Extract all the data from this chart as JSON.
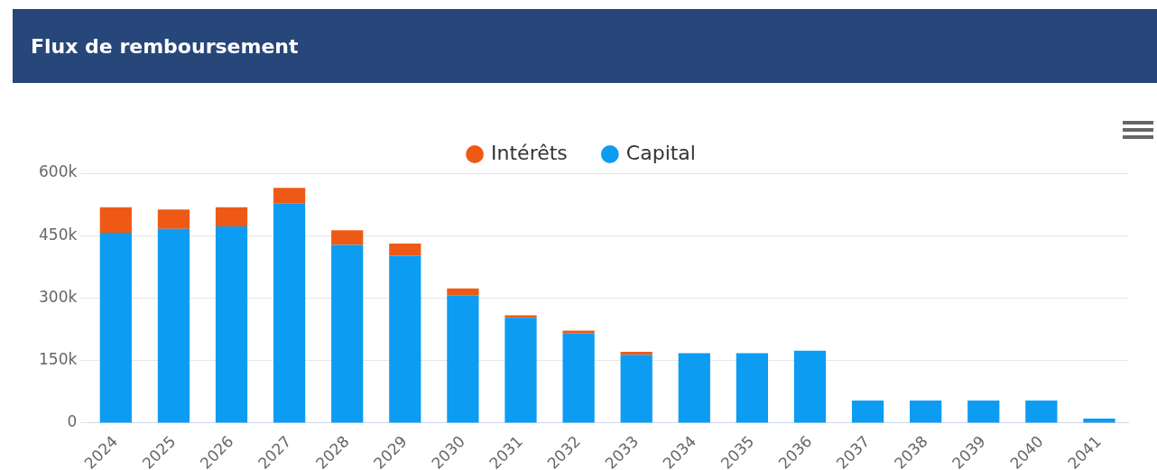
{
  "chart_data": {
    "type": "bar",
    "title": "Flux de remboursement",
    "stacked": true,
    "legend": "top",
    "grid": "y",
    "categories": [
      "2024",
      "2025",
      "2026",
      "2027",
      "2028",
      "2029",
      "2030",
      "2031",
      "2032",
      "2033",
      "2034",
      "2035",
      "2036",
      "2037",
      "2038",
      "2039",
      "2040",
      "2041"
    ],
    "series": [
      {
        "name": "Capital",
        "color": "#0c9cf2",
        "values": [
          457000,
          466000,
          472000,
          527000,
          428000,
          402000,
          306000,
          253000,
          215000,
          164000,
          168000,
          168000,
          174000,
          54000,
          54000,
          54000,
          54000,
          11000
        ]
      },
      {
        "name": "Intérêts",
        "color": "#ee5a16",
        "values": [
          61000,
          47000,
          46000,
          38000,
          35000,
          29000,
          17000,
          6000,
          7000,
          7000,
          0,
          0,
          0,
          0,
          0,
          0,
          0,
          0
        ]
      }
    ],
    "ylim": [
      0,
      600000
    ],
    "yticks": [
      {
        "value": 0,
        "label": "0"
      },
      {
        "value": 150000,
        "label": "150k"
      },
      {
        "value": 300000,
        "label": "300k"
      },
      {
        "value": 450000,
        "label": "450k"
      },
      {
        "value": 600000,
        "label": "600k"
      }
    ]
  }
}
